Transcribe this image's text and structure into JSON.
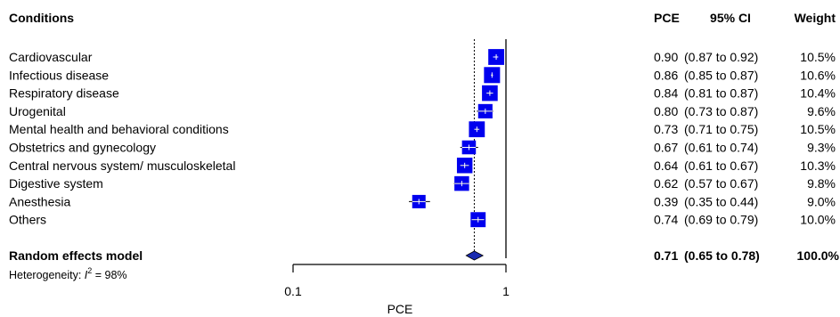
{
  "chart_data": {
    "type": "forest",
    "headers": {
      "label": "Conditions",
      "estimate": "PCE",
      "ci": "95% CI",
      "weight": "Weight"
    },
    "studies": [
      {
        "label": "Cardiovascular",
        "est": 0.9,
        "lo": 0.87,
        "hi": 0.92,
        "est_text": "0.90",
        "ci_text": "(0.87 to 0.92)",
        "weight_text": "10.5%",
        "weight": 10.5
      },
      {
        "label": "Infectious disease",
        "est": 0.86,
        "lo": 0.85,
        "hi": 0.87,
        "est_text": "0.86",
        "ci_text": "(0.85 to 0.87)",
        "weight_text": "10.6%",
        "weight": 10.6
      },
      {
        "label": "Respiratory disease",
        "est": 0.84,
        "lo": 0.81,
        "hi": 0.87,
        "est_text": "0.84",
        "ci_text": "(0.81 to 0.87)",
        "weight_text": "10.4%",
        "weight": 10.4
      },
      {
        "label": "Urogenital",
        "est": 0.8,
        "lo": 0.73,
        "hi": 0.87,
        "est_text": "0.80",
        "ci_text": "(0.73 to 0.87)",
        "weight_text": "9.6%",
        "weight": 9.6
      },
      {
        "label": "Mental health and behavioral conditions",
        "est": 0.73,
        "lo": 0.71,
        "hi": 0.75,
        "est_text": "0.73",
        "ci_text": "(0.71 to 0.75)",
        "weight_text": "10.5%",
        "weight": 10.5
      },
      {
        "label": "Obstetrics and gynecology",
        "est": 0.67,
        "lo": 0.61,
        "hi": 0.74,
        "est_text": "0.67",
        "ci_text": "(0.61 to 0.74)",
        "weight_text": "9.3%",
        "weight": 9.3
      },
      {
        "label": "Central nervous system/ musculoskeletal",
        "est": 0.64,
        "lo": 0.61,
        "hi": 0.67,
        "est_text": "0.64",
        "ci_text": "(0.61 to 0.67)",
        "weight_text": "10.3%",
        "weight": 10.3
      },
      {
        "label": "Digestive system",
        "est": 0.62,
        "lo": 0.57,
        "hi": 0.67,
        "est_text": "0.62",
        "ci_text": "(0.57 to 0.67)",
        "weight_text": "9.8%",
        "weight": 9.8
      },
      {
        "label": "Anesthesia",
        "est": 0.39,
        "lo": 0.35,
        "hi": 0.44,
        "est_text": "0.39",
        "ci_text": "(0.35 to 0.44)",
        "weight_text": "9.0%",
        "weight": 9.0
      },
      {
        "label": "Others",
        "est": 0.74,
        "lo": 0.69,
        "hi": 0.79,
        "est_text": "0.74",
        "ci_text": "(0.69 to 0.79)",
        "weight_text": "10.0%",
        "weight": 10.0
      }
    ],
    "summary": {
      "label": "Random effects model",
      "est": 0.71,
      "lo": 0.65,
      "hi": 0.78,
      "est_text": "0.71",
      "ci_text": "(0.65 to 0.78)",
      "weight_text": "100.0%"
    },
    "heterogeneity": {
      "prefix": "Heterogeneity: ",
      "symbol": "I",
      "superscript": "2",
      "value": " = 98%"
    },
    "xaxis": {
      "label": "PCE",
      "scale": "log",
      "range": [
        0.1,
        1
      ],
      "ticks": [
        0.1,
        1
      ],
      "tick_labels": [
        "0.1",
        "1"
      ]
    },
    "reference_line": 1,
    "summary_line": 0.71,
    "colors": {
      "box": "#0000ee",
      "diamond": "#1a2bb0",
      "line": "#000000"
    }
  }
}
